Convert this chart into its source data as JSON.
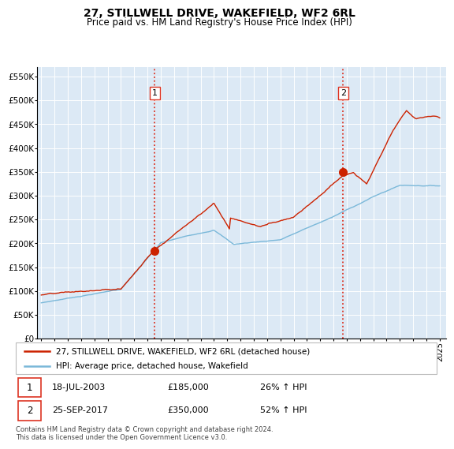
{
  "title": "27, STILLWELL DRIVE, WAKEFIELD, WF2 6RL",
  "subtitle": "Price paid vs. HM Land Registry's House Price Index (HPI)",
  "hpi_label": "HPI: Average price, detached house, Wakefield",
  "property_label": "27, STILLWELL DRIVE, WAKEFIELD, WF2 6RL (detached house)",
  "sale1_label": "18-JUL-2003",
  "sale1_price": "£185,000",
  "sale1_hpi": "26% ↑ HPI",
  "sale1_date_num": 2003.54,
  "sale1_value": 185000,
  "sale2_label": "25-SEP-2017",
  "sale2_price": "£350,000",
  "sale2_hpi": "52% ↑ HPI",
  "sale2_date_num": 2017.73,
  "sale2_value": 350000,
  "ylim": [
    0,
    570000
  ],
  "xlim_start": 1994.7,
  "xlim_end": 2025.5,
  "yticks": [
    0,
    50000,
    100000,
    150000,
    200000,
    250000,
    300000,
    350000,
    400000,
    450000,
    500000,
    550000
  ],
  "ytick_labels": [
    "£0",
    "£50K",
    "£100K",
    "£150K",
    "£200K",
    "£250K",
    "£300K",
    "£350K",
    "£400K",
    "£450K",
    "£500K",
    "£550K"
  ],
  "hpi_color": "#7ab8d9",
  "property_color": "#cc2200",
  "dashed_line_color": "#dd3322",
  "plot_bg_color": "#dce9f5",
  "grid_color": "#ffffff",
  "footer": "Contains HM Land Registry data © Crown copyright and database right 2024.\nThis data is licensed under the Open Government Licence v3.0."
}
